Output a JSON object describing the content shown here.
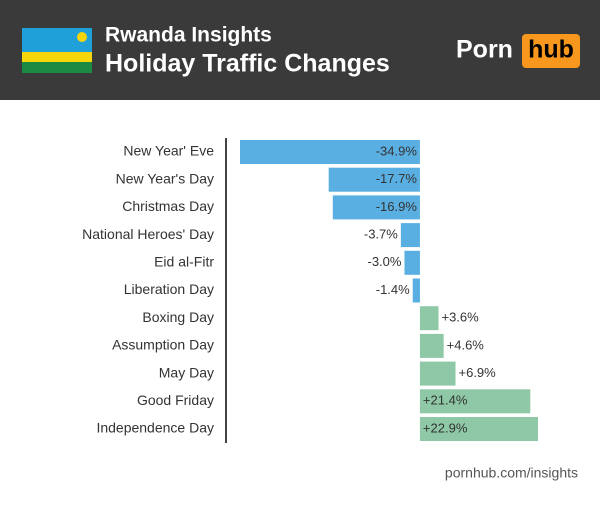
{
  "chart_data": {
    "type": "bar",
    "orientation": "horizontal",
    "title": "Rwanda Insights",
    "subtitle": "Holiday Traffic Changes",
    "categories": [
      "New Year' Eve",
      "New Year's Day",
      "Christmas Day",
      "National Heroes' Day",
      "Eid al-Fitr",
      "Liberation Day",
      "Boxing Day",
      "Assumption Day",
      "May Day",
      "Good Friday",
      "Independence Day"
    ],
    "values": [
      -34.9,
      -17.7,
      -16.9,
      -3.7,
      -3.0,
      -1.4,
      3.6,
      4.6,
      6.9,
      21.4,
      22.9
    ],
    "value_labels": [
      "-34.9%",
      "-17.7%",
      "-16.9%",
      "-3.7%",
      "-3.0%",
      "-1.4%",
      "+3.6%",
      "+4.6%",
      "+6.9%",
      "+21.4%",
      "+22.9%"
    ],
    "negative_color": "#5aafe2",
    "positive_color": "#8ec8a6"
  },
  "logo": {
    "first": "Porn",
    "second": "hub"
  },
  "footer": "pornhub.com/insights"
}
